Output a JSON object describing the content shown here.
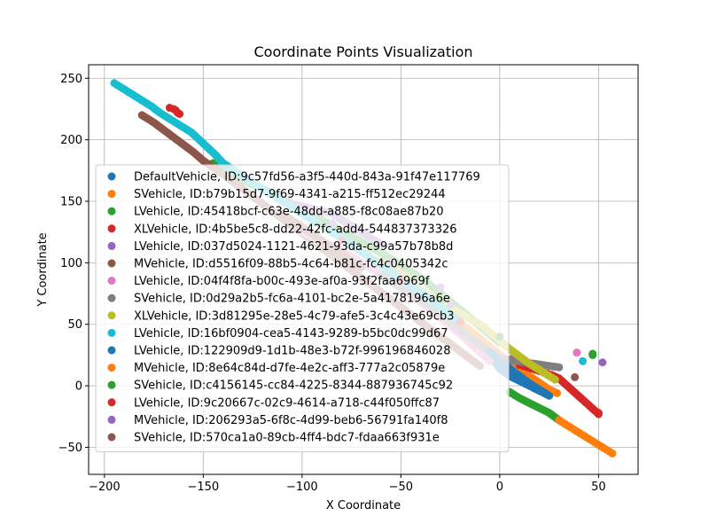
{
  "chart_data": {
    "type": "scatter",
    "title": "Coordinate Points Visualization",
    "xlabel": "X Coordinate",
    "ylabel": "Y Coordinate",
    "xlim": [
      -208,
      70
    ],
    "ylim": [
      -72,
      261
    ],
    "xticks": [
      -200,
      -150,
      -100,
      -50,
      0,
      50
    ],
    "yticks": [
      -50,
      0,
      50,
      100,
      150,
      200,
      250
    ],
    "grid": true,
    "legend_position": "lower-left",
    "series": [
      {
        "name": "DefaultVehicle, ID:9c57fd56-a3f5-440d-843a-91f47e117769",
        "color": "#1f77b4",
        "points": [
          [
            -80,
            120
          ],
          [
            -70,
            110
          ],
          [
            -60,
            98
          ],
          [
            -50,
            86
          ],
          [
            -40,
            74
          ],
          [
            -30,
            62
          ],
          [
            -20,
            50
          ],
          [
            -10,
            38
          ],
          [
            0,
            14
          ],
          [
            5,
            8
          ],
          [
            10,
            4
          ],
          [
            15,
            0
          ],
          [
            20,
            -4
          ],
          [
            25,
            -8
          ]
        ]
      },
      {
        "name": "SVehicle, ID:b79b15d7-9f69-4341-a215-ff512ec29244",
        "color": "#ff7f0e",
        "points": [
          [
            -60,
            100
          ],
          [
            -45,
            85
          ],
          [
            -30,
            62
          ],
          [
            -15,
            45
          ],
          [
            0,
            25
          ],
          [
            15,
            8
          ],
          [
            25,
            -3
          ],
          [
            29,
            -6
          ]
        ]
      },
      {
        "name": "LVehicle, ID:45418bcf-c63e-48dd-a885-f8c08ae87b20",
        "color": "#2ca02c",
        "points": [
          [
            -145,
            181
          ],
          [
            -135,
            171
          ],
          [
            -120,
            160
          ],
          [
            -100,
            144
          ],
          [
            -80,
            126
          ],
          [
            -60,
            108
          ],
          [
            -40,
            88
          ],
          [
            -20,
            62
          ],
          [
            0,
            35
          ],
          [
            5,
            -5
          ],
          [
            10,
            -10
          ],
          [
            15,
            -14
          ],
          [
            20,
            -18
          ],
          [
            25,
            -22
          ],
          [
            30,
            -28
          ],
          [
            47,
            26
          ]
        ]
      },
      {
        "name": "XLVehicle, ID:4b5be5c8-dd22-42fc-add4-544837373326",
        "color": "#d62728",
        "points": [
          [
            -167,
            226
          ],
          [
            -165,
            225
          ],
          [
            -164,
            224
          ],
          [
            -163,
            222
          ],
          [
            -162,
            221
          ],
          [
            10,
            17
          ],
          [
            14,
            15
          ],
          [
            18,
            13
          ],
          [
            22,
            11
          ],
          [
            26,
            9
          ],
          [
            30,
            6
          ],
          [
            48,
            -20
          ],
          [
            50,
            -23
          ]
        ]
      },
      {
        "name": "LVehicle, ID:037d5024-1121-4621-93da-c99a57b78b8d",
        "color": "#9467bd",
        "points": [
          [
            -110,
            150
          ],
          [
            -85,
            140
          ],
          [
            -60,
            115
          ],
          [
            -30,
            80
          ],
          [
            6,
            22
          ],
          [
            52,
            19
          ]
        ]
      },
      {
        "name": "MVehicle, ID:d5516f09-88b5-4c64-b81c-fc4c0405342c",
        "color": "#8c564b",
        "points": [
          [
            -181,
            220
          ],
          [
            -175,
            214
          ],
          [
            -170,
            208
          ],
          [
            -165,
            202
          ],
          [
            -160,
            196
          ],
          [
            -155,
            190
          ],
          [
            -150,
            183
          ],
          [
            -140,
            172
          ],
          [
            -130,
            160
          ],
          [
            -120,
            148
          ],
          [
            -110,
            136
          ],
          [
            -100,
            124
          ],
          [
            -90,
            112
          ],
          [
            -80,
            100
          ],
          [
            -70,
            88
          ],
          [
            -60,
            76
          ],
          [
            -50,
            64
          ],
          [
            -40,
            52
          ],
          [
            -30,
            40
          ],
          [
            -20,
            28
          ],
          [
            -10,
            16
          ],
          [
            38,
            7
          ]
        ]
      },
      {
        "name": "LVehicle, ID:04f4f8fa-b00c-493e-af0a-93f2faa6969f",
        "color": "#e377c2",
        "points": [
          [
            -100,
            125
          ],
          [
            -80,
            110
          ],
          [
            -60,
            90
          ],
          [
            -40,
            68
          ],
          [
            -20,
            42
          ],
          [
            -5,
            20
          ],
          [
            39,
            27
          ]
        ]
      },
      {
        "name": "SVehicle, ID:0d29a2b5-fc6a-4101-bc2e-5a4178196a6e",
        "color": "#7f7f7f",
        "points": [
          [
            -60,
            90
          ],
          [
            -40,
            70
          ],
          [
            -20,
            45
          ],
          [
            0,
            22
          ],
          [
            30,
            15
          ]
        ]
      },
      {
        "name": "XLVehicle, ID:3d81295e-28e5-4c79-afe5-3c4c43e69cb3",
        "color": "#bcbd22",
        "points": [
          [
            -70,
            110
          ],
          [
            -50,
            88
          ],
          [
            -30,
            68
          ],
          [
            -10,
            50
          ],
          [
            5,
            30
          ],
          [
            15,
            18
          ],
          [
            25,
            8
          ],
          [
            28,
            5
          ]
        ]
      },
      {
        "name": "LVehicle, ID:16bf0904-cea5-4143-9289-b5bc0dc99d67",
        "color": "#17becf",
        "points": [
          [
            -195,
            246
          ],
          [
            -192,
            243
          ],
          [
            -188,
            239
          ],
          [
            -184,
            235
          ],
          [
            -180,
            231
          ],
          [
            -176,
            227
          ],
          [
            -172,
            222
          ],
          [
            -168,
            218
          ],
          [
            -164,
            214
          ],
          [
            -160,
            210
          ],
          [
            -156,
            206
          ],
          [
            -152,
            200
          ],
          [
            -148,
            194
          ],
          [
            -144,
            188
          ],
          [
            -140,
            181
          ],
          [
            -120,
            160
          ],
          [
            -100,
            140
          ],
          [
            -80,
            120
          ],
          [
            -60,
            98
          ],
          [
            -40,
            76
          ],
          [
            -20,
            52
          ],
          [
            42,
            20
          ]
        ]
      },
      {
        "name": "LVehicle, ID:122909d9-1d1b-48e3-b72f-996196846028",
        "color": "#1f77b4",
        "points": [
          [
            -5,
            28
          ],
          [
            0,
            20
          ],
          [
            5,
            14
          ],
          [
            10,
            8
          ],
          [
            15,
            2
          ],
          [
            20,
            -3
          ],
          [
            25,
            -8
          ]
        ]
      },
      {
        "name": "MVehicle, ID:8e64c84d-d7fe-4e2c-aff3-777a2c05879e",
        "color": "#ff7f0e",
        "points": [
          [
            30,
            -28
          ],
          [
            33,
            -31
          ],
          [
            36,
            -34
          ],
          [
            39,
            -37
          ],
          [
            42,
            -40
          ],
          [
            45,
            -43
          ],
          [
            48,
            -46
          ],
          [
            51,
            -49
          ],
          [
            54,
            -52
          ],
          [
            57,
            -55
          ]
        ]
      },
      {
        "name": "SVehicle, ID:c4156145-cc84-4225-8344-887936745c92",
        "color": "#2ca02c",
        "points": [
          [
            -90,
            130
          ],
          [
            -60,
            100
          ],
          [
            -30,
            70
          ],
          [
            0,
            40
          ],
          [
            47,
            25
          ]
        ]
      },
      {
        "name": "LVehicle, ID:9c20667c-02c9-4614-a718-c44f050ffc87",
        "color": "#d62728",
        "points": [
          [
            -80,
            118
          ],
          [
            -50,
            86
          ],
          [
            -20,
            52
          ],
          [
            50,
            -22
          ]
        ]
      },
      {
        "name": "MVehicle, ID:206293a5-6f8c-4d99-beb6-56791fa140f8",
        "color": "#9467bd",
        "points": [
          [
            -85,
            132
          ],
          [
            -55,
            100
          ],
          [
            -25,
            66
          ]
        ]
      },
      {
        "name": "SVehicle, ID:570ca1a0-89cb-4ff4-bdc7-fdaa663f931e",
        "color": "#8c564b",
        "points": [
          [
            -110,
            140
          ],
          [
            -90,
            118
          ],
          [
            -70,
            96
          ]
        ]
      }
    ]
  }
}
